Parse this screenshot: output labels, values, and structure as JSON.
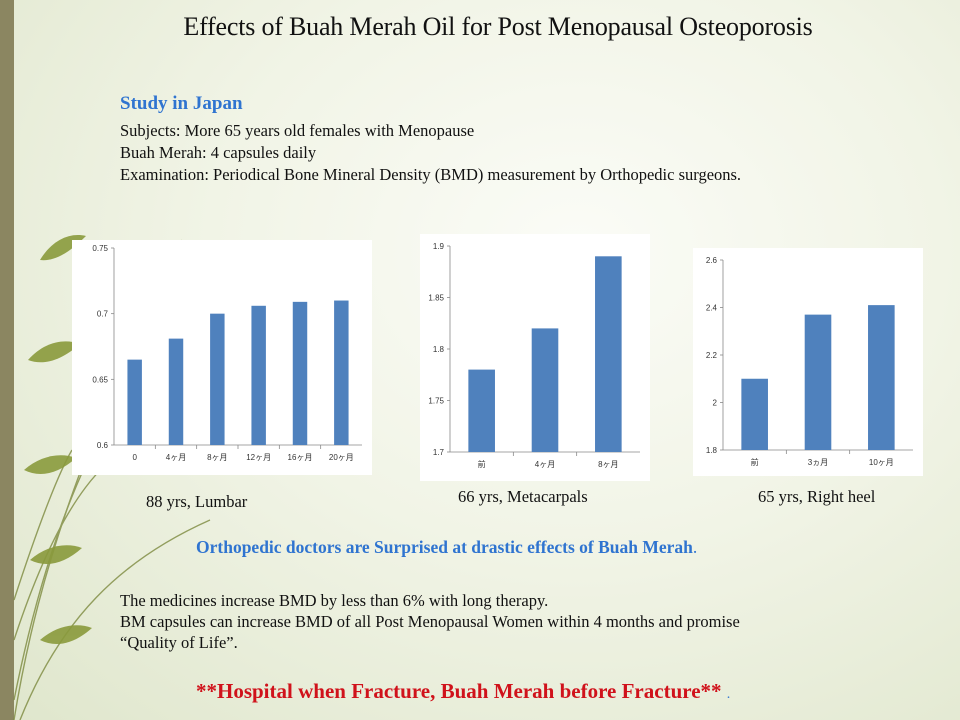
{
  "title": "Effects of Buah Merah Oil for Post Menopausal Osteoporosis",
  "study": {
    "heading": "Study in Japan",
    "lines": [
      "Subjects:  More 65 years old females with Menopause",
      "Buah Merah: 4 capsules daily",
      "Examination: Periodical Bone Mineral Density (BMD) measurement by Orthopedic surgeons."
    ]
  },
  "colors": {
    "bar": "#4f81bd",
    "heading_blue": "#2f74d0",
    "slogan_red": "#d0121b",
    "accent_band": "#8b8661"
  },
  "chart_data": [
    {
      "type": "bar",
      "caption": "88 yrs, Lumbar",
      "categories": [
        "0",
        "4ヶ月",
        "8ヶ月",
        "12ヶ月",
        "16ヶ月",
        "20ヶ月"
      ],
      "values": [
        0.665,
        0.681,
        0.7,
        0.706,
        0.709,
        0.71
      ],
      "ylim": [
        0.6,
        0.75
      ],
      "yticks": [
        "0.75",
        "0.7",
        "0.65",
        "0.6"
      ],
      "grid": false
    },
    {
      "type": "bar",
      "caption": "66 yrs, Metacarpals",
      "categories": [
        "前",
        "4ヶ月",
        "8ヶ月"
      ],
      "values": [
        1.78,
        1.82,
        1.89
      ],
      "ylim": [
        1.7,
        1.9
      ],
      "yticks": [
        "1.9",
        "1.85",
        "1.8",
        "1.75",
        "1.7"
      ],
      "grid": false
    },
    {
      "type": "bar",
      "caption": "65 yrs, Right heel",
      "categories": [
        "前",
        "3ヵ月",
        "10ヶ月"
      ],
      "values": [
        2.1,
        2.37,
        2.41
      ],
      "ylim": [
        1.8,
        2.6
      ],
      "yticks": [
        "2.6",
        "2.4",
        "2.2",
        "2",
        "1.8"
      ],
      "grid": false
    }
  ],
  "note": "Orthopedic doctors are Surprised at drastic effects of Buah Merah",
  "note_end": ".",
  "body": [
    "The medicines increase BMD by less than 6% with long therapy.",
    "BM capsules can increase BMD of all Post Menopausal Women within 4 months and promise",
    "“Quality of Life”."
  ],
  "slogan": "**Hospital when Fracture, Buah Merah before Fracture**",
  "slogan_end": "."
}
